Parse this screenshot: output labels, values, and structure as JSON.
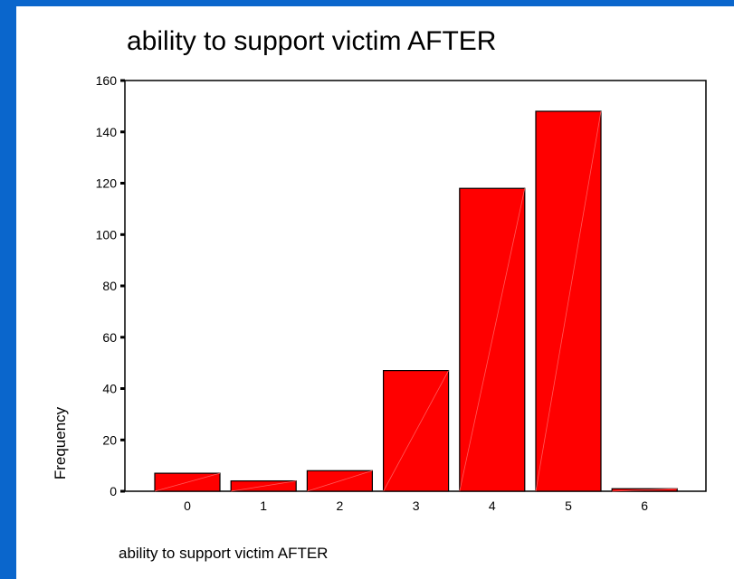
{
  "chart_data": {
    "type": "bar",
    "title": "ability to support victim AFTER",
    "xlabel": "ability to support victim AFTER",
    "ylabel": "Frequency",
    "categories": [
      "0",
      "1",
      "2",
      "3",
      "4",
      "5",
      "6"
    ],
    "values": [
      7,
      4,
      8,
      47,
      118,
      148,
      1
    ],
    "yticks": [
      0,
      20,
      40,
      60,
      80,
      100,
      120,
      140,
      160
    ],
    "ylim": [
      0,
      160
    ],
    "grid": false,
    "legend": "none",
    "bar_color": "#ff0000",
    "bar_edge_color": "#000000",
    "frame_background": "#0a66cc"
  }
}
